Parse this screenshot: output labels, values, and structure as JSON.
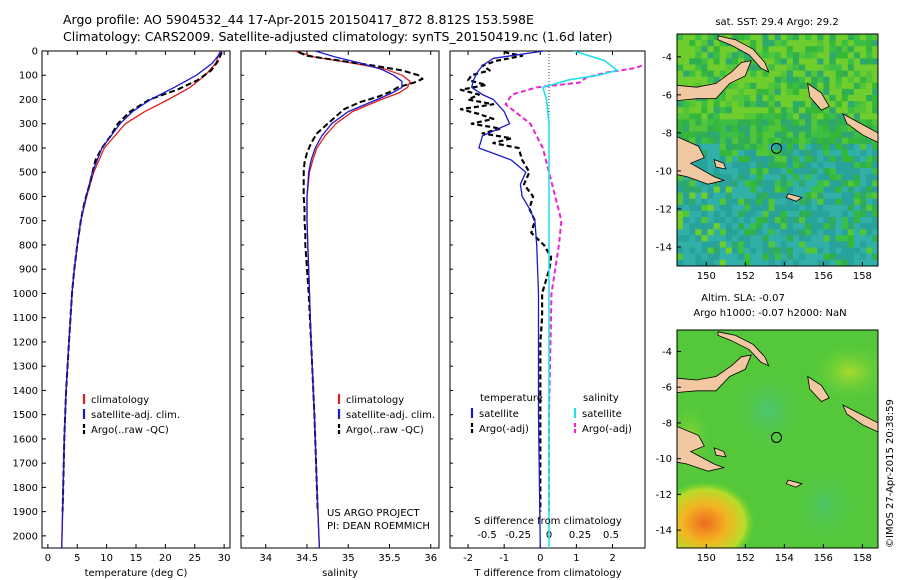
{
  "header": {
    "title_line1": "Argo profile: AO 5904532_44 17-Apr-2015 20150417_872 8.812S 153.598E",
    "title_line2": "Climatology: CARS2009. Satellite-adjusted climatology: synTS_20150419.nc (1.6d later)"
  },
  "colors": {
    "clim": "#e02020",
    "sat": "#1a1acc",
    "argo": "#000000",
    "sal_sat": "#22e0ee",
    "sal_argo": "#ee22cc",
    "land": "#f2c8a2"
  },
  "chart_data": [
    {
      "id": "temperature",
      "type": "line",
      "xlabel": "temperature (deg C)",
      "ylabel": "",
      "xlim": [
        -1,
        31
      ],
      "ylim": [
        2050,
        0
      ],
      "xticks": [
        0,
        5,
        10,
        15,
        20,
        25,
        30
      ],
      "yticks": [
        0,
        100,
        200,
        300,
        400,
        500,
        600,
        700,
        800,
        900,
        1000,
        1100,
        1200,
        1300,
        1400,
        1500,
        1600,
        1700,
        1800,
        1900,
        2000
      ],
      "legend": [
        "climatology",
        "satellite-adj. clim.",
        "Argo(..raw -QC)"
      ],
      "series": [
        {
          "name": "climatology",
          "depth": [
            0,
            50,
            100,
            150,
            200,
            250,
            300,
            400,
            500,
            600,
            700,
            800,
            900,
            1000,
            1200,
            1400,
            1600,
            1800,
            2000,
            2050
          ],
          "values": [
            29.3,
            28.6,
            26.8,
            24.2,
            20.5,
            16.5,
            13.2,
            9.6,
            7.8,
            6.6,
            5.6,
            5.0,
            4.5,
            4.1,
            3.6,
            3.1,
            2.8,
            2.6,
            2.4,
            2.35
          ]
        },
        {
          "name": "satellite-adj. clim.",
          "depth": [
            0,
            50,
            100,
            150,
            200,
            250,
            300,
            400,
            500,
            600,
            700,
            800,
            900,
            1000,
            1200,
            1400,
            1600,
            1800,
            2000,
            2050
          ],
          "values": [
            29.6,
            28.0,
            25.3,
            21.5,
            17.5,
            14.4,
            12.3,
            9.2,
            7.6,
            6.5,
            5.6,
            5.0,
            4.5,
            4.1,
            3.6,
            3.1,
            2.8,
            2.6,
            2.4,
            2.35
          ]
        },
        {
          "name": "Argo(..raw -QC)",
          "depth": [
            5,
            40,
            80,
            120,
            160,
            200,
            250,
            300,
            350,
            400,
            450,
            500,
            550,
            600,
            650,
            700,
            800,
            900,
            1000,
            1200,
            1400,
            1600,
            1800,
            1900
          ],
          "values": [
            29.6,
            29.0,
            27.8,
            25.5,
            22.0,
            17.3,
            14.0,
            11.9,
            10.7,
            9.2,
            8.1,
            7.6,
            7.1,
            6.5,
            6.0,
            5.6,
            5.0,
            4.5,
            4.1,
            3.6,
            3.1,
            2.8,
            2.6,
            2.5
          ]
        }
      ]
    },
    {
      "id": "salinity",
      "type": "line",
      "xlabel": "salinity",
      "xlim": [
        33.7,
        36.1
      ],
      "ylim": [
        2050,
        0
      ],
      "xticks": [
        34,
        34.5,
        35,
        35.5,
        36
      ],
      "xtick_labels": [
        "34",
        "34.5",
        "35",
        "35.5",
        "36"
      ],
      "legend": [
        "climatology",
        "satellite-adj. clim.",
        "Argo(..raw -QC)"
      ],
      "annotation": [
        "US ARGO PROJECT",
        "PI: DEAN ROEMMICH"
      ],
      "series": [
        {
          "name": "climatology",
          "depth": [
            0,
            25,
            50,
            75,
            100,
            125,
            150,
            175,
            200,
            250,
            300,
            350,
            400,
            450,
            500,
            600,
            700,
            800,
            1000,
            1200,
            1500,
            1800,
            2050
          ],
          "values": [
            34.35,
            34.6,
            35.05,
            35.45,
            35.65,
            35.75,
            35.72,
            35.6,
            35.4,
            35.05,
            34.85,
            34.72,
            34.62,
            34.57,
            34.53,
            34.5,
            34.5,
            34.51,
            34.53,
            34.55,
            34.59,
            34.62,
            34.65
          ]
        },
        {
          "name": "satellite-adj. clim.",
          "depth": [
            0,
            25,
            50,
            75,
            100,
            125,
            150,
            175,
            200,
            250,
            300,
            350,
            400,
            450,
            500,
            600,
            700,
            800,
            1000,
            1200,
            1500,
            1800,
            2050
          ],
          "values": [
            34.6,
            34.85,
            35.15,
            35.4,
            35.55,
            35.65,
            35.65,
            35.52,
            35.35,
            35.0,
            34.8,
            34.68,
            34.6,
            34.55,
            34.52,
            34.5,
            34.5,
            34.51,
            34.53,
            34.55,
            34.59,
            34.62,
            34.65
          ]
        },
        {
          "name": "Argo(..raw -QC)",
          "depth": [
            5,
            20,
            40,
            60,
            80,
            100,
            115,
            130,
            150,
            170,
            190,
            210,
            240,
            270,
            300,
            340,
            380,
            420,
            460,
            500,
            550,
            600,
            650,
            700,
            750,
            800,
            850,
            900,
            1000,
            1200,
            1500,
            1800,
            1900
          ],
          "values": [
            34.4,
            34.5,
            34.9,
            35.3,
            35.65,
            35.85,
            35.9,
            35.8,
            35.6,
            35.5,
            35.35,
            35.15,
            34.95,
            34.85,
            34.75,
            34.62,
            34.55,
            34.5,
            34.47,
            34.46,
            34.46,
            34.46,
            34.47,
            34.47,
            34.48,
            34.48,
            34.49,
            34.5,
            34.52,
            34.55,
            34.59,
            34.62,
            34.63
          ]
        }
      ]
    },
    {
      "id": "differences",
      "type": "line",
      "xlabel": "T difference from climatology",
      "top_label": "S difference from climatology",
      "xlim": [
        -2.5,
        2.9
      ],
      "ylim": [
        2050,
        0
      ],
      "xticks": [
        -2,
        -1,
        0,
        1,
        2
      ],
      "xtick_labels": [
        "-2",
        "-1",
        "0",
        "1",
        "2"
      ],
      "sticks": [
        -0.5,
        -0.25,
        0,
        0.25,
        0.5
      ],
      "stick_labels": [
        "-0.5",
        "-0.25",
        "0",
        "0.25",
        "0.5"
      ],
      "legend_left_title": "temperature",
      "legend_right_title": "salinity",
      "legend": [
        "satellite",
        "Argo(-adj)",
        "satellite",
        "Argo(-adj)"
      ],
      "series": [
        {
          "name": "temperature satellite",
          "depth": [
            0,
            30,
            60,
            90,
            120,
            150,
            180,
            200,
            250,
            300,
            350,
            400,
            450,
            500,
            550,
            600,
            650,
            700,
            800,
            1000,
            1500,
            2050
          ],
          "values": [
            0.1,
            -1.3,
            -1.6,
            -1.75,
            -1.85,
            -1.9,
            -1.6,
            -1.3,
            -1.0,
            -0.85,
            -1.6,
            -1.7,
            -0.8,
            -0.4,
            -0.55,
            -0.5,
            -0.3,
            -0.15,
            -0.1,
            -0.05,
            -0.05,
            0
          ]
        },
        {
          "name": "temperature Argo(-adj)",
          "depth": [
            5,
            20,
            40,
            60,
            80,
            100,
            120,
            140,
            160,
            180,
            200,
            220,
            240,
            260,
            280,
            300,
            320,
            340,
            360,
            380,
            400,
            450,
            500,
            550,
            600,
            650,
            700,
            750,
            800,
            850,
            900,
            950,
            1000,
            1100,
            1200,
            1500,
            1800,
            1900
          ],
          "values": [
            -1.0,
            -0.5,
            -1.2,
            -1.6,
            -1.4,
            -1.9,
            -2.0,
            -1.5,
            -2.2,
            -1.7,
            -2.0,
            -1.3,
            -2.2,
            -1.7,
            -1.3,
            -1.9,
            -1.1,
            -1.6,
            -0.8,
            -1.3,
            -0.6,
            -0.5,
            -0.3,
            -0.45,
            -0.2,
            -0.3,
            -0.15,
            -0.25,
            0.1,
            0.3,
            0.25,
            0.15,
            0.05,
            0.05,
            0.0,
            0.0,
            0.0,
            0.0
          ]
        },
        {
          "name": "salinity satellite",
          "depth": [
            0,
            40,
            80,
            100,
            120,
            150,
            200,
            250,
            300,
            400,
            500,
            600,
            800,
            1000,
            1500,
            2050
          ],
          "values": [
            0.2,
            0.45,
            0.55,
            0.4,
            0.15,
            -0.05,
            -0.02,
            -0.01,
            0,
            0,
            0,
            0,
            0,
            0,
            0,
            0
          ]
        },
        {
          "name": "salinity Argo(-adj)",
          "depth": [
            5,
            40,
            70,
            90,
            110,
            130,
            150,
            180,
            220,
            260,
            300,
            350,
            400,
            500,
            600,
            700,
            800,
            900,
            1000,
            1500,
            1900
          ],
          "values": [
            0.9,
            0.85,
            0.7,
            0.45,
            0.3,
            0.25,
            -0.1,
            -0.3,
            -0.35,
            -0.25,
            -0.15,
            -0.1,
            -0.05,
            0.0,
            0.05,
            0.1,
            0.08,
            0.05,
            0.02,
            0.0,
            0.0
          ]
        }
      ]
    }
  ],
  "maps": {
    "sst": {
      "title": "sat. SST: 29.4  Argo: 29.2",
      "lon_ticks": [
        150,
        152,
        154,
        156,
        158
      ],
      "lon_labels": [
        "150",
        "152",
        "154",
        "156",
        "158"
      ],
      "lat_ticks": [
        -4,
        -6,
        -8,
        -10,
        -12,
        -14
      ],
      "lat_labels": [
        "-4",
        "-6",
        "-8",
        "-10",
        "-12",
        "-14"
      ],
      "lon_range": [
        148.5,
        158.8
      ],
      "lat_range": [
        -15,
        -2.8
      ]
    },
    "sla": {
      "title_line1": "Altim. SLA: -0.07",
      "title_line2": "Argo h1000: -0.07  h2000: NaN",
      "lon_ticks": [
        150,
        152,
        154,
        156,
        158
      ],
      "lon_labels": [
        "150",
        "152",
        "154",
        "156",
        "158"
      ],
      "lat_ticks": [
        -4,
        -6,
        -8,
        -10,
        -12,
        -14
      ],
      "lat_labels": [
        "-4",
        "-6",
        "-8",
        "-10",
        "-12",
        "-14"
      ],
      "lon_range": [
        148.5,
        158.8
      ],
      "lat_range": [
        -15,
        -2.8
      ]
    },
    "argo_position": {
      "lon": 153.598,
      "lat": -8.812
    }
  },
  "credit": "©IMOS 27-Apr-2015 20:38:59"
}
